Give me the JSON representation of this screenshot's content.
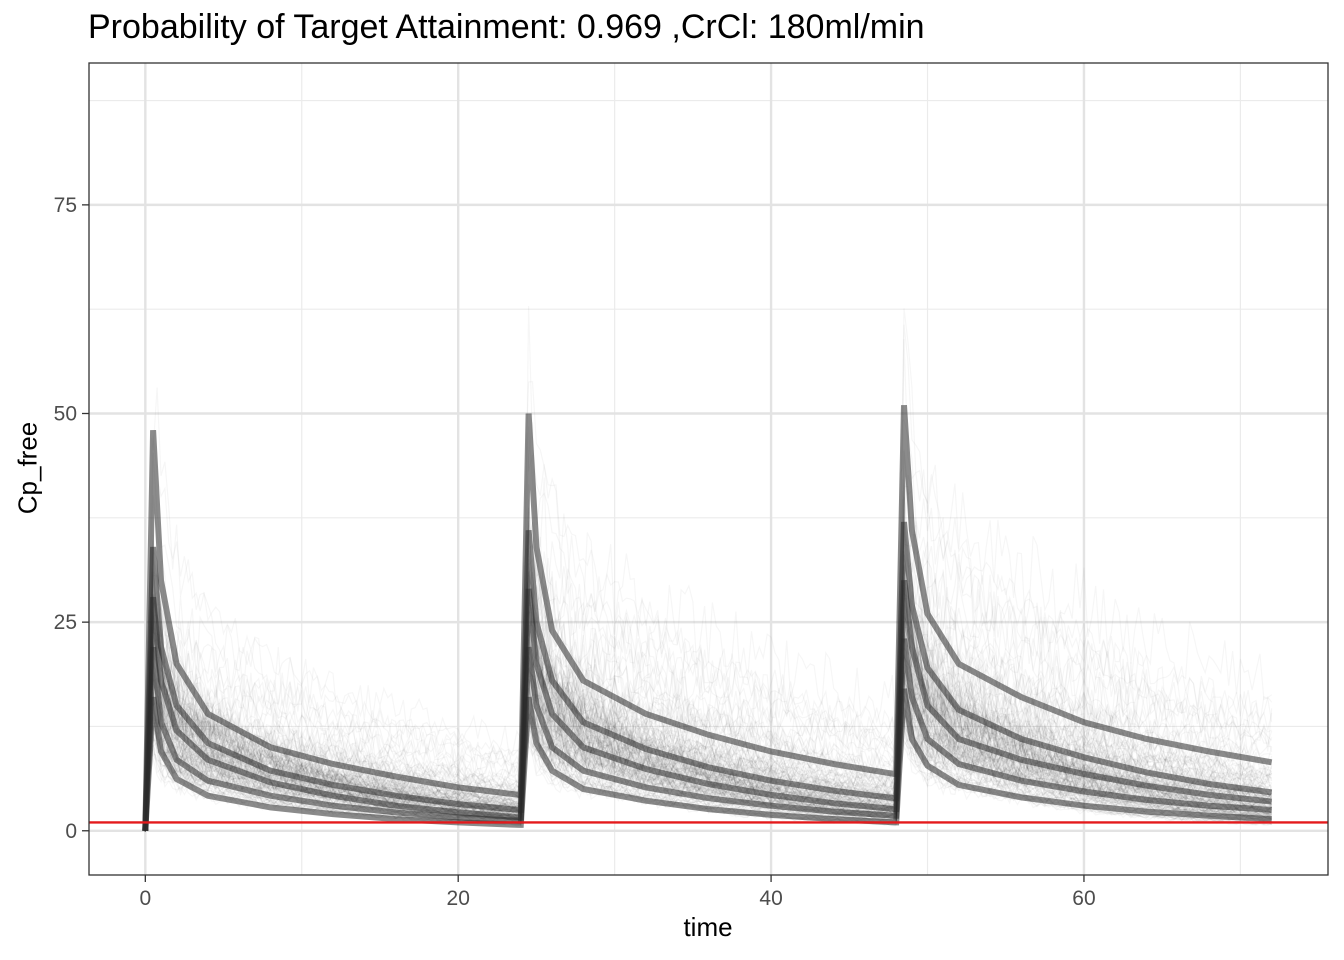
{
  "chart_data": {
    "type": "line",
    "title": "Probability of Target Attainment: 0.969 ,CrCl: 180ml/min",
    "xlabel": "time",
    "ylabel": "Cp_free",
    "xlim": [
      -3.6,
      75.6
    ],
    "ylim": [
      -5.3,
      92
    ],
    "x_ticks": [
      0,
      20,
      40,
      60
    ],
    "y_ticks": [
      0,
      25,
      50,
      75
    ],
    "grid": true,
    "legend": "none",
    "dose_times": [
      0,
      24,
      48
    ],
    "end_time": 72,
    "target_line": {
      "y": 1,
      "color": "#e41a1c"
    },
    "series_color": "#2b2b2b",
    "series": [
      {
        "name": "",
        "x": [
          0,
          0.5,
          1,
          2,
          4,
          8,
          12,
          16,
          20,
          23.9,
          24,
          24.5,
          25,
          26,
          28,
          32,
          36,
          40,
          44,
          47.9,
          48,
          48.5,
          49,
          50,
          52,
          56,
          60,
          64,
          68,
          72
        ],
        "y": [
          0,
          28,
          18,
          12,
          8.5,
          5.8,
          4.2,
          3.0,
          2.2,
          1.6,
          1.6,
          29,
          20,
          14,
          10,
          7.4,
          5.6,
          4.3,
          3.3,
          2.6,
          2.6,
          30,
          22,
          15,
          11,
          8.5,
          6.8,
          5.4,
          4.3,
          3.5
        ]
      },
      {
        "name": "",
        "x": [
          0,
          0.5,
          1,
          2,
          4,
          8,
          12,
          16,
          20,
          23.9,
          24,
          24.5,
          25,
          26,
          28,
          32,
          36,
          40,
          44,
          47.9,
          48,
          48.5,
          49,
          50,
          52,
          56,
          60,
          64,
          68,
          72
        ],
        "y": [
          0,
          34,
          22,
          15,
          10.5,
          7.2,
          5.5,
          4.2,
          3.2,
          2.5,
          2.5,
          36,
          25,
          18,
          13,
          9.8,
          7.6,
          6.0,
          4.8,
          3.9,
          3.9,
          37,
          27,
          19.5,
          14.5,
          11,
          8.8,
          7.0,
          5.6,
          4.6
        ]
      },
      {
        "name": "",
        "x": [
          0,
          0.5,
          1,
          2,
          4,
          8,
          12,
          16,
          20,
          23.9,
          24,
          24.5,
          25,
          26,
          28,
          32,
          36,
          40,
          44,
          47.9,
          48,
          48.5,
          49,
          50,
          52,
          56,
          60,
          64,
          68,
          72
        ],
        "y": [
          0,
          22,
          13,
          8.5,
          6.0,
          4.2,
          3.0,
          2.2,
          1.6,
          1.2,
          1.2,
          22,
          15,
          10,
          7.2,
          5.2,
          3.9,
          3.0,
          2.3,
          1.8,
          1.8,
          23,
          16,
          11,
          8.0,
          6.0,
          4.7,
          3.7,
          3.0,
          2.5
        ]
      },
      {
        "name": "",
        "x": [
          0,
          0.5,
          1,
          2,
          4,
          8,
          12,
          16,
          20,
          23.9,
          24,
          24.5,
          25,
          26,
          28,
          32,
          36,
          40,
          44,
          47.9,
          48,
          48.5,
          49,
          50,
          52,
          56,
          60,
          64,
          68,
          72
        ],
        "y": [
          0,
          48,
          30,
          20,
          14,
          10,
          8,
          6.5,
          5.2,
          4.3,
          4.3,
          50,
          34,
          24,
          18,
          14,
          11.5,
          9.5,
          8.0,
          6.8,
          6.8,
          51,
          36,
          26,
          20,
          16,
          13,
          11,
          9.5,
          8.2
        ]
      },
      {
        "name": "",
        "x": [
          0,
          0.5,
          1,
          2,
          4,
          8,
          12,
          16,
          20,
          23.9,
          24,
          24.5,
          25,
          26,
          28,
          32,
          36,
          40,
          44,
          47.9,
          48,
          48.5,
          49,
          50,
          52,
          56,
          60,
          64,
          68,
          72
        ],
        "y": [
          0,
          16,
          9.5,
          6.2,
          4.2,
          2.8,
          2.0,
          1.4,
          1.0,
          0.7,
          0.7,
          16,
          10.5,
          7.2,
          5.0,
          3.6,
          2.6,
          1.9,
          1.4,
          1.0,
          1.0,
          17,
          11,
          7.8,
          5.5,
          4.0,
          3.0,
          2.3,
          1.8,
          1.4
        ]
      }
    ]
  }
}
